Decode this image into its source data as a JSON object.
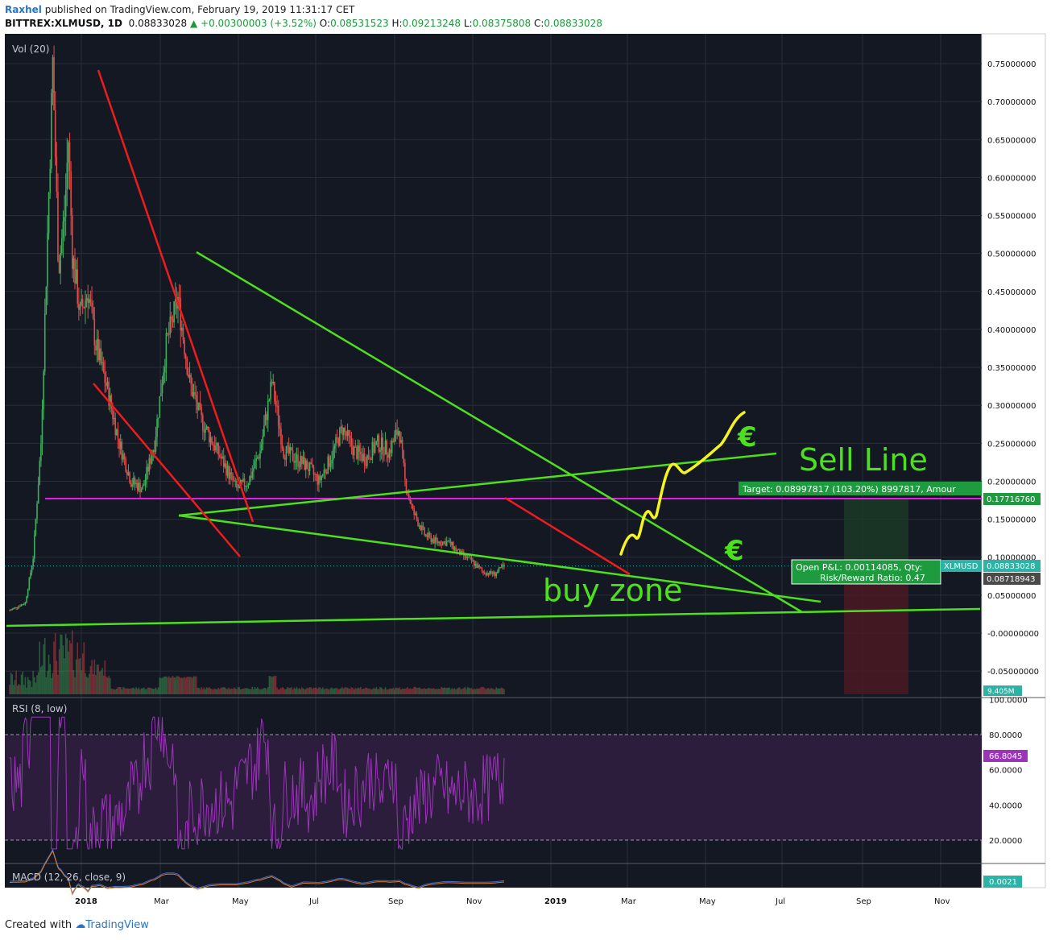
{
  "header": {
    "author": "Raxhel",
    "published": "published on TradingView.com, February 19, 2019 11:31:17 CET",
    "symbol": "BITTREX:XLMUSD, 1D",
    "price": "0.08833028",
    "change": "▲ +0.00300003 (+3.52%)",
    "o_label": "O:",
    "o_val": "0.08531523",
    "h_label": "H:",
    "h_val": "0.09213248",
    "l_label": "L:",
    "l_val": "0.08375808",
    "c_label": "C:",
    "c_val": "0.08833028"
  },
  "footer": {
    "created": "Created with",
    "brand": "TradingView"
  },
  "colors": {
    "background": "#141823",
    "up": "#3fae5c",
    "down": "#e04a4a",
    "trend_green": "#4ce01e",
    "trend_red": "#ee1c1c",
    "magenta": "#e81ce8",
    "yellow": "#f5f51e",
    "rsi": "#9a35b8",
    "macd": "#3a6ed8",
    "signal": "#e07a1e"
  },
  "chart_data": {
    "type": "candlestick",
    "title": "",
    "vol_label": "Vol (20)",
    "x_ticks": [
      "2018",
      "Mar",
      "May",
      "Jul",
      "Sep",
      "Nov",
      "2019",
      "Mar",
      "May",
      "Jul",
      "Sep",
      "Nov"
    ],
    "y_ticks": [
      "0.75000000",
      "0.70000000",
      "0.65000000",
      "0.60000000",
      "0.55000000",
      "0.50000000",
      "0.45000000",
      "0.40000000",
      "0.35000000",
      "0.30000000",
      "0.25000000",
      "0.20000000",
      "0.15000000",
      "0.10000000",
      "0.05000000",
      "-0.00000000",
      "-0.05000000"
    ],
    "ylim": [
      -0.08,
      0.79
    ],
    "last_price_label": "0.08833028",
    "last_close": 0.08833028,
    "target_level": 0.1771676,
    "target_level_label": "0.17716760",
    "entry_level": 0.08718943,
    "entry_level_label": "0.08718943",
    "volume_label": "9.405M",
    "symbol_badge": "XLMUSD",
    "target_box": "Target: 0.08997817 (103.20%) 8997817, Amour",
    "pnl_line1": "Open P&L: 0.00114085, Qty:",
    "pnl_line2": "Risk/Reward Ratio: 0.47",
    "annotations": {
      "sell_line": "Sell Line",
      "buy_zone": "buy zone",
      "euro": "€"
    },
    "price_path": [
      {
        "m": 0.0,
        "p": 0.03
      },
      {
        "m": 0.4,
        "p": 0.04
      },
      {
        "m": 0.6,
        "p": 0.1
      },
      {
        "m": 0.8,
        "p": 0.25
      },
      {
        "m": 1.0,
        "p": 0.58
      },
      {
        "m": 1.1,
        "p": 0.75
      },
      {
        "m": 1.25,
        "p": 0.48
      },
      {
        "m": 1.4,
        "p": 0.55
      },
      {
        "m": 1.5,
        "p": 0.65
      },
      {
        "m": 1.6,
        "p": 0.5
      },
      {
        "m": 1.8,
        "p": 0.42
      },
      {
        "m": 2.0,
        "p": 0.45
      },
      {
        "m": 2.2,
        "p": 0.38
      },
      {
        "m": 2.5,
        "p": 0.32
      },
      {
        "m": 2.8,
        "p": 0.25
      },
      {
        "m": 3.1,
        "p": 0.2
      },
      {
        "m": 3.4,
        "p": 0.19
      },
      {
        "m": 3.7,
        "p": 0.25
      },
      {
        "m": 4.0,
        "p": 0.38
      },
      {
        "m": 4.3,
        "p": 0.44
      },
      {
        "m": 4.6,
        "p": 0.33
      },
      {
        "m": 4.9,
        "p": 0.28
      },
      {
        "m": 5.2,
        "p": 0.25
      },
      {
        "m": 5.5,
        "p": 0.22
      },
      {
        "m": 5.8,
        "p": 0.19
      },
      {
        "m": 6.1,
        "p": 0.2
      },
      {
        "m": 6.4,
        "p": 0.24
      },
      {
        "m": 6.7,
        "p": 0.33
      },
      {
        "m": 7.0,
        "p": 0.24
      },
      {
        "m": 7.3,
        "p": 0.23
      },
      {
        "m": 7.6,
        "p": 0.22
      },
      {
        "m": 7.9,
        "p": 0.2
      },
      {
        "m": 8.2,
        "p": 0.23
      },
      {
        "m": 8.5,
        "p": 0.27
      },
      {
        "m": 8.8,
        "p": 0.24
      },
      {
        "m": 9.1,
        "p": 0.23
      },
      {
        "m": 9.4,
        "p": 0.25
      },
      {
        "m": 9.7,
        "p": 0.24
      },
      {
        "m": 9.95,
        "p": 0.27
      },
      {
        "m": 10.1,
        "p": 0.2
      },
      {
        "m": 10.3,
        "p": 0.16
      },
      {
        "m": 10.6,
        "p": 0.13
      },
      {
        "m": 10.9,
        "p": 0.12
      },
      {
        "m": 11.2,
        "p": 0.12
      },
      {
        "m": 11.5,
        "p": 0.105
      },
      {
        "m": 11.8,
        "p": 0.095
      },
      {
        "m": 12.1,
        "p": 0.08
      },
      {
        "m": 12.4,
        "p": 0.078
      },
      {
        "m": 12.62,
        "p": 0.088
      }
    ],
    "rsi": {
      "label": "RSI (8, low)",
      "y_ticks": [
        "100.0000",
        "80.0000",
        "60.0000",
        "40.0000",
        "20.0000"
      ],
      "bands": [
        80,
        20
      ],
      "last_label": "66.8045",
      "last": 66.8045
    },
    "macd": {
      "label": "MACD (12, 26, close, 9)",
      "last_label": "0.0021",
      "last": 0.0021
    }
  }
}
